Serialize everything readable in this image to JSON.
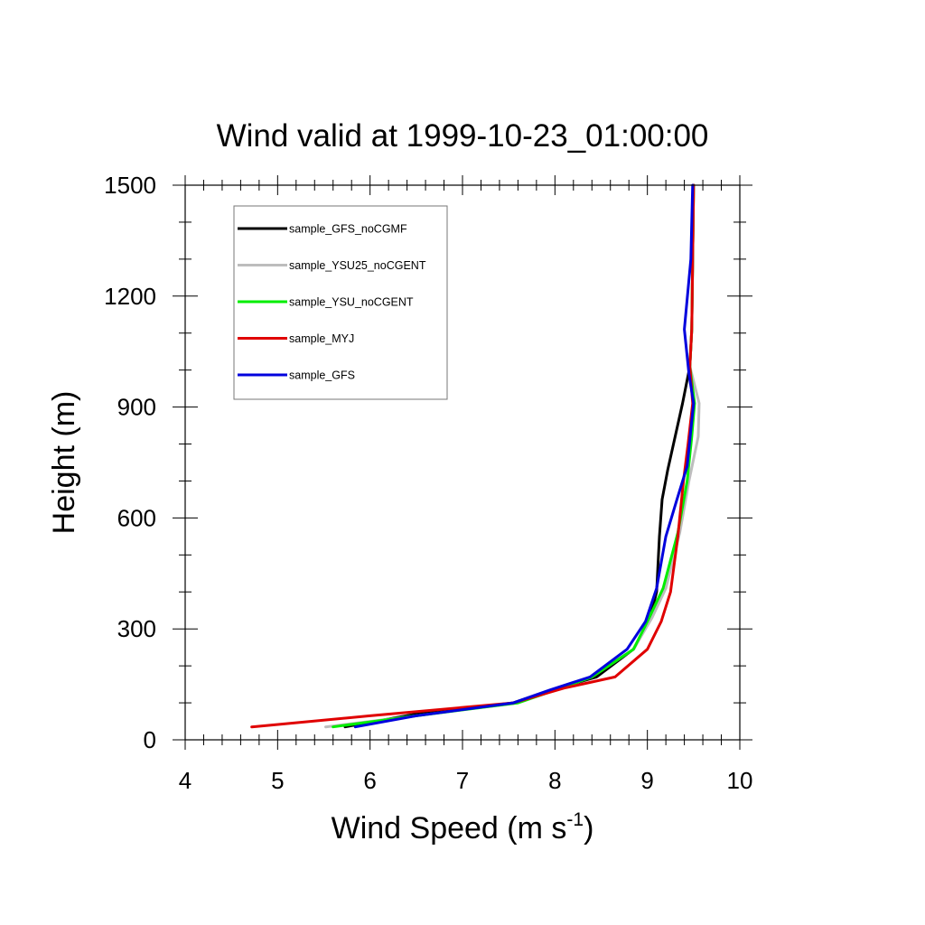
{
  "chart_data": {
    "type": "line",
    "title": "Wind valid at 1999-10-23_01:00:00",
    "xlabel": "Wind Speed (m s",
    "xlabel_sup": "-1",
    "xlabel_end": ")",
    "ylabel": "Height (m)",
    "xlim": [
      4,
      10
    ],
    "ylim": [
      0,
      1500
    ],
    "x_ticks": [
      4,
      5,
      6,
      7,
      8,
      9,
      10
    ],
    "y_ticks": [
      0,
      300,
      600,
      900,
      1200,
      1500
    ],
    "x_tick_labels": [
      "4",
      "5",
      "6",
      "7",
      "8",
      "9",
      "10"
    ],
    "y_tick_labels": [
      "0",
      "300",
      "600",
      "900",
      "1200",
      "1500"
    ],
    "legend_position": "top-left",
    "grid": false,
    "series": [
      {
        "name": "sample_GFS_noCGMF",
        "color": "#000000",
        "points": [
          [
            5.73,
            35
          ],
          [
            6.5,
            70
          ],
          [
            7.55,
            100
          ],
          [
            7.9,
            130
          ],
          [
            8.45,
            170
          ],
          [
            8.85,
            245
          ],
          [
            9.02,
            320
          ],
          [
            9.1,
            400
          ],
          [
            9.13,
            550
          ],
          [
            9.16,
            650
          ],
          [
            9.22,
            730
          ],
          [
            9.38,
            910
          ],
          [
            9.46,
            1010
          ],
          [
            9.48,
            1110
          ],
          [
            9.49,
            1300
          ],
          [
            9.5,
            1500
          ]
        ]
      },
      {
        "name": "sample_YSU25_noCGENT",
        "color": "#bdbdbd",
        "points": [
          [
            5.52,
            35
          ],
          [
            6.5,
            65
          ],
          [
            7.6,
            100
          ],
          [
            7.95,
            130
          ],
          [
            8.4,
            170
          ],
          [
            8.85,
            245
          ],
          [
            9.05,
            330
          ],
          [
            9.2,
            410
          ],
          [
            9.35,
            560
          ],
          [
            9.45,
            700
          ],
          [
            9.55,
            820
          ],
          [
            9.56,
            910
          ],
          [
            9.46,
            1010
          ],
          [
            9.48,
            1110
          ],
          [
            9.49,
            1300
          ],
          [
            9.5,
            1500
          ]
        ]
      },
      {
        "name": "sample_YSU_noCGENT",
        "color": "#00ee00",
        "points": [
          [
            5.6,
            35
          ],
          [
            6.5,
            65
          ],
          [
            7.6,
            100
          ],
          [
            7.95,
            130
          ],
          [
            8.4,
            170
          ],
          [
            8.85,
            245
          ],
          [
            9.0,
            320
          ],
          [
            9.17,
            410
          ],
          [
            9.33,
            560
          ],
          [
            9.43,
            700
          ],
          [
            9.48,
            820
          ],
          [
            9.51,
            910
          ],
          [
            9.46,
            1010
          ],
          [
            9.48,
            1110
          ],
          [
            9.49,
            1300
          ],
          [
            9.5,
            1500
          ]
        ]
      },
      {
        "name": "sample_MYJ",
        "color": "#e00000",
        "points": [
          [
            4.72,
            35
          ],
          [
            6.0,
            65
          ],
          [
            7.55,
            100
          ],
          [
            8.1,
            140
          ],
          [
            8.65,
            170
          ],
          [
            9.0,
            245
          ],
          [
            9.15,
            320
          ],
          [
            9.25,
            400
          ],
          [
            9.33,
            550
          ],
          [
            9.39,
            700
          ],
          [
            9.44,
            800
          ],
          [
            9.49,
            910
          ],
          [
            9.46,
            1010
          ],
          [
            9.48,
            1110
          ],
          [
            9.49,
            1300
          ],
          [
            9.5,
            1500
          ]
        ]
      },
      {
        "name": "sample_GFS",
        "color": "#0000dd",
        "points": [
          [
            5.84,
            35
          ],
          [
            6.5,
            65
          ],
          [
            7.55,
            100
          ],
          [
            7.95,
            135
          ],
          [
            8.38,
            170
          ],
          [
            8.78,
            245
          ],
          [
            8.98,
            320
          ],
          [
            9.1,
            410
          ],
          [
            9.2,
            550
          ],
          [
            9.32,
            650
          ],
          [
            9.43,
            740
          ],
          [
            9.5,
            910
          ],
          [
            9.45,
            990
          ],
          [
            9.4,
            1110
          ],
          [
            9.47,
            1300
          ],
          [
            9.49,
            1500
          ]
        ]
      }
    ]
  }
}
